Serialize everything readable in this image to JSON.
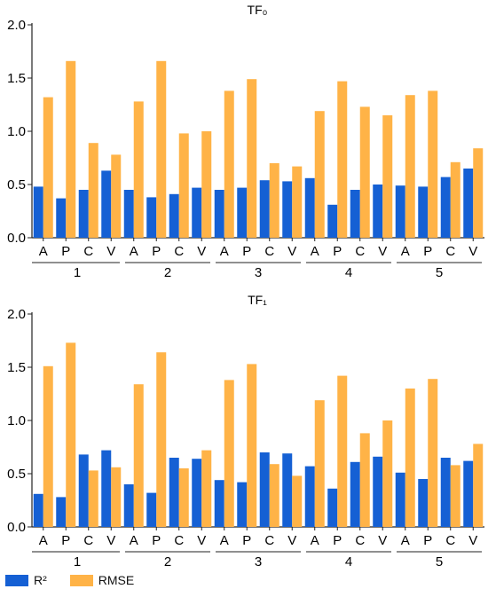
{
  "colors": {
    "r2": "#1560d4",
    "rmse": "#ffb347",
    "axis": "#222222"
  },
  "legend": [
    {
      "name": "R²",
      "color": "#1560d4"
    },
    {
      "name": "RMSE",
      "color": "#ffb347"
    }
  ],
  "chart_data": [
    {
      "type": "bar",
      "title": "TF₀",
      "ylim": [
        0,
        2.0
      ],
      "yticks": [
        "0.0",
        "0.5",
        "1.0",
        "1.5",
        "2.0"
      ],
      "groups": [
        "1",
        "2",
        "3",
        "4",
        "5"
      ],
      "subcategories": [
        "A",
        "P",
        "C",
        "V"
      ],
      "series": [
        {
          "name": "R²",
          "values": [
            0.48,
            0.37,
            0.45,
            0.63,
            0.45,
            0.38,
            0.41,
            0.47,
            0.45,
            0.47,
            0.54,
            0.53,
            0.56,
            0.31,
            0.45,
            0.5,
            0.49,
            0.48,
            0.57,
            0.65
          ]
        },
        {
          "name": "RMSE",
          "values": [
            1.32,
            1.66,
            0.89,
            0.78,
            1.28,
            1.66,
            0.98,
            1.0,
            1.38,
            1.49,
            0.7,
            0.67,
            1.19,
            1.47,
            1.23,
            1.15,
            1.34,
            1.38,
            0.71,
            0.84
          ]
        }
      ]
    },
    {
      "type": "bar",
      "title": "TF₁",
      "ylim": [
        0,
        2.0
      ],
      "yticks": [
        "0.0",
        "0.5",
        "1.0",
        "1.5",
        "2.0"
      ],
      "groups": [
        "1",
        "2",
        "3",
        "4",
        "5"
      ],
      "subcategories": [
        "A",
        "P",
        "C",
        "V"
      ],
      "series": [
        {
          "name": "R²",
          "values": [
            0.31,
            0.28,
            0.68,
            0.72,
            0.4,
            0.32,
            0.65,
            0.64,
            0.44,
            0.42,
            0.7,
            0.69,
            0.57,
            0.36,
            0.61,
            0.66,
            0.51,
            0.45,
            0.65,
            0.62
          ]
        },
        {
          "name": "RMSE",
          "values": [
            1.51,
            1.73,
            0.53,
            0.56,
            1.34,
            1.64,
            0.55,
            0.72,
            1.38,
            1.53,
            0.59,
            0.48,
            1.19,
            1.42,
            0.88,
            1.0,
            1.3,
            1.39,
            0.58,
            0.78
          ]
        }
      ]
    }
  ]
}
